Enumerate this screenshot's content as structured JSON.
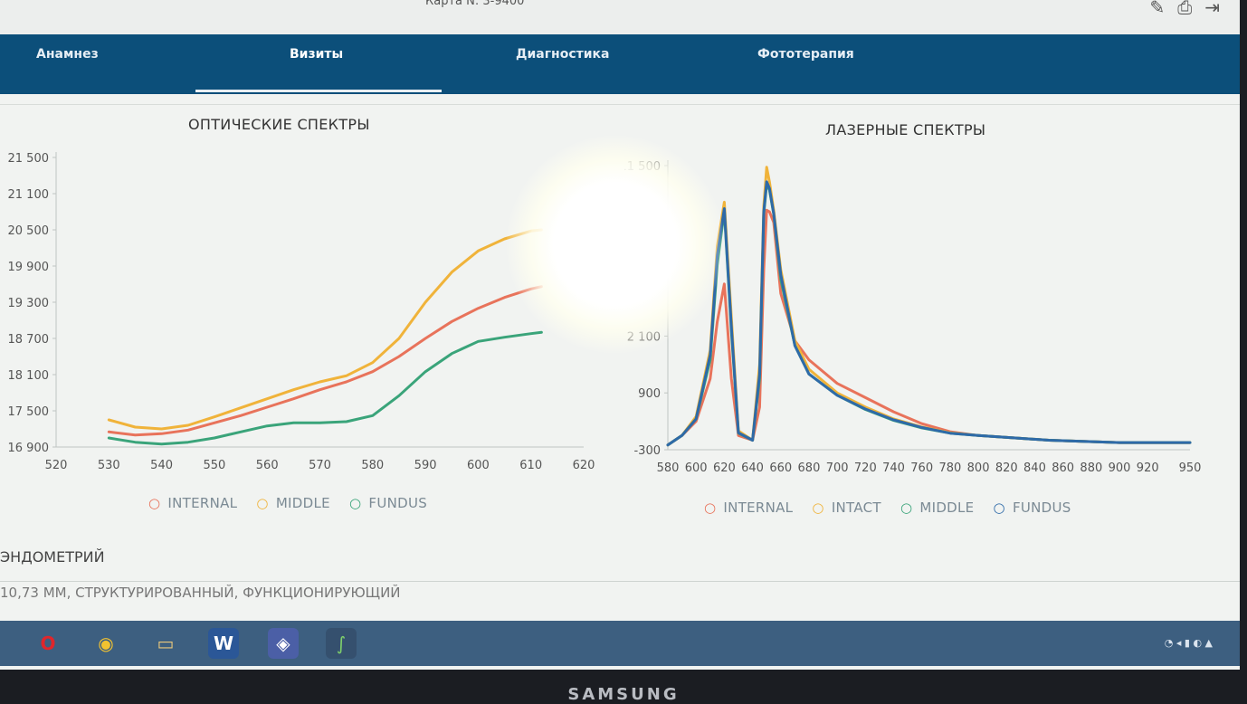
{
  "header": {
    "card_number": "Карта N: 3-9400",
    "tools": [
      "pencil-icon",
      "print-icon",
      "exit-icon"
    ]
  },
  "nav": {
    "tabs": [
      {
        "label": "Анамнез",
        "active": false
      },
      {
        "label": "Визиты",
        "active": true
      },
      {
        "label": "Диагностика",
        "active": false
      },
      {
        "label": "Фототерапия",
        "active": false
      }
    ]
  },
  "panels": {
    "optical_title": "ОПТИЧЕСКИЕ СПЕКТРЫ",
    "laser_title": "ЛАЗЕРНЫЕ СПЕКТРЫ"
  },
  "chart_data": [
    {
      "type": "line",
      "title": "ОПТИЧЕСКИЕ СПЕКТРЫ",
      "xlabel": "",
      "ylabel": "",
      "x_ticks": [
        520,
        530,
        540,
        550,
        560,
        570,
        580,
        590,
        600,
        610,
        620
      ],
      "x_tick_labels": [
        "520",
        "530",
        "540",
        "550",
        "560",
        "570",
        "580",
        "590",
        "600",
        "610",
        "620"
      ],
      "y_ticks": [
        16900,
        17500,
        18100,
        18700,
        19300,
        19900,
        20500,
        21100,
        21500
      ],
      "y_tick_labels": [
        "16 900",
        "17 500",
        "18 100",
        "18 700",
        "19 300",
        "19 900",
        "20 500",
        "21 100",
        "21 500"
      ],
      "xlim": [
        520,
        620
      ],
      "ylim": [
        16900,
        21500
      ],
      "legend": "bottom",
      "x": [
        530,
        535,
        540,
        545,
        550,
        555,
        560,
        565,
        570,
        575,
        580,
        585,
        590,
        595,
        600,
        605,
        610,
        612
      ],
      "series": [
        {
          "name": "INTERNAL",
          "color": "#e8735b",
          "values": [
            17150,
            17100,
            17120,
            17180,
            17300,
            17420,
            17560,
            17700,
            17850,
            17980,
            18150,
            18400,
            18700,
            18980,
            19200,
            19380,
            19520,
            19560
          ]
        },
        {
          "name": "MIDDLE",
          "color": "#f0b33a",
          "values": [
            17350,
            17230,
            17200,
            17260,
            17400,
            17550,
            17700,
            17850,
            17980,
            18080,
            18300,
            18700,
            19300,
            19800,
            20150,
            20350,
            20480,
            20500
          ]
        },
        {
          "name": "FUNDUS",
          "color": "#3aa47a",
          "values": [
            17050,
            16980,
            16950,
            16980,
            17050,
            17150,
            17250,
            17300,
            17300,
            17320,
            17420,
            17750,
            18150,
            18450,
            18650,
            18720,
            18780,
            18800
          ]
        }
      ]
    },
    {
      "type": "line",
      "title": "ЛАЗЕРНЫЕ СПЕКТРЫ",
      "xlabel": "",
      "ylabel": "",
      "x_ticks": [
        580,
        600,
        620,
        640,
        660,
        680,
        700,
        720,
        740,
        760,
        780,
        800,
        820,
        840,
        860,
        880,
        900,
        920,
        950
      ],
      "x_tick_labels": [
        "580",
        "600",
        "620",
        "640",
        "660",
        "680",
        "700",
        "720",
        "740",
        "760",
        "780",
        "800",
        "820",
        "840",
        "860",
        "880",
        "900",
        "920",
        "950"
      ],
      "y_ticks": [
        -300,
        900,
        2100,
        3300,
        4500,
        11500
      ],
      "y_tick_labels": [
        "-300",
        "900",
        "2 100",
        "3 300",
        "4 500",
        "11 500"
      ],
      "xlim": [
        580,
        950
      ],
      "ylim": [
        -300,
        11500
      ],
      "legend": "bottom",
      "x": [
        580,
        590,
        600,
        610,
        615,
        620,
        625,
        630,
        640,
        645,
        648,
        650,
        652,
        655,
        660,
        670,
        680,
        700,
        720,
        740,
        760,
        780,
        800,
        850,
        900,
        950
      ],
      "series": [
        {
          "name": "INTERNAL",
          "color": "#e8735b",
          "values": [
            -200,
            0,
            300,
            1200,
            2400,
            3200,
            1200,
            0,
            -100,
            600,
            3500,
            6000,
            5800,
            4500,
            3000,
            2000,
            1600,
            1100,
            800,
            500,
            250,
            80,
            0,
            -100,
            -150,
            -150
          ]
        },
        {
          "name": "INTACT",
          "color": "#f0b33a",
          "values": [
            -200,
            0,
            400,
            1800,
            4000,
            7000,
            2500,
            100,
            -100,
            1500,
            6500,
            11300,
            9500,
            6000,
            3500,
            2000,
            1400,
            900,
            600,
            350,
            180,
            60,
            0,
            -100,
            -150,
            -150
          ]
        },
        {
          "name": "MIDDLE",
          "color": "#3aa47a",
          "values": [
            -200,
            0,
            350,
            1600,
            3600,
            6000,
            2200,
            50,
            -100,
            1200,
            5500,
            9200,
            8500,
            5500,
            3300,
            1900,
            1300,
            850,
            550,
            320,
            160,
            50,
            0,
            -100,
            -150,
            -150
          ]
        },
        {
          "name": "FUNDUS",
          "color": "#2e6aa8",
          "values": [
            -200,
            0,
            350,
            1700,
            3800,
            6200,
            2300,
            60,
            -100,
            1300,
            5800,
            9500,
            8700,
            5600,
            3400,
            1900,
            1300,
            850,
            560,
            330,
            170,
            50,
            0,
            -100,
            -150,
            -150
          ]
        }
      ]
    }
  ],
  "record": {
    "label": "ЭНДОМЕТРИЙ",
    "value": "10,73 ММ, СТРУКТУРИРОВАННЫЙ, ФУНКЦИОНИРУЮЩИЙ"
  },
  "taskbar": {
    "apps": [
      "opera-icon",
      "chrome-icon",
      "folder-icon",
      "word-icon",
      "app-icon",
      "spectra-app-icon"
    ]
  },
  "bezel": {
    "brand": "SAMSUNG"
  }
}
